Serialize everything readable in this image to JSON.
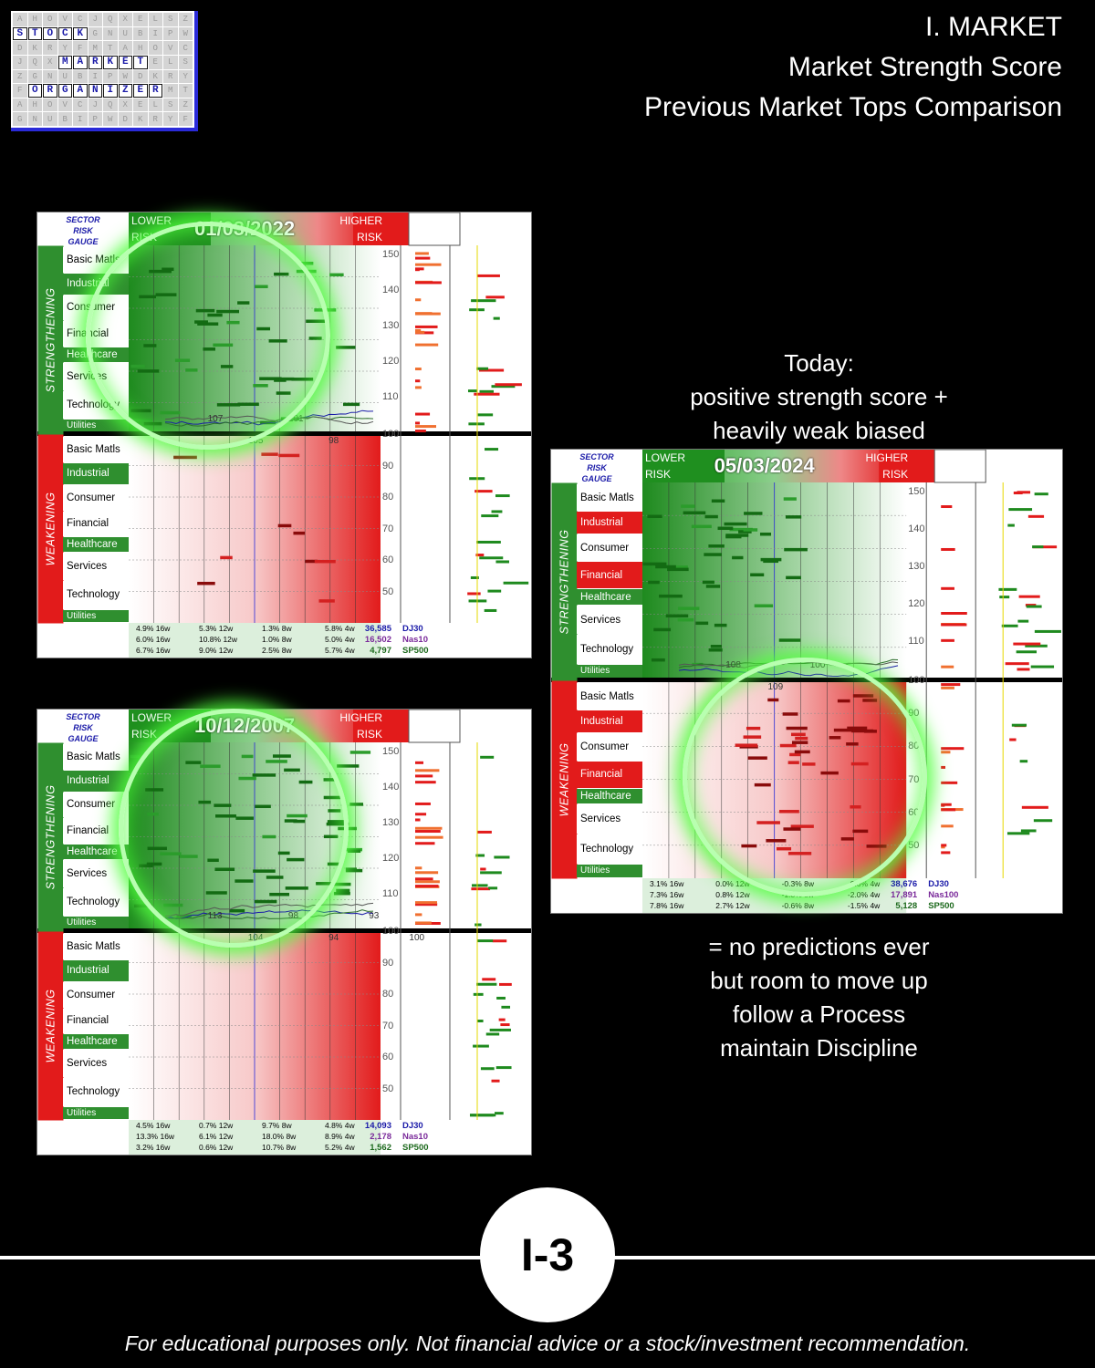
{
  "logo": {
    "rows": [
      [
        "",
        "",
        "",
        "",
        "",
        "",
        "",
        "",
        "",
        "",
        "",
        ""
      ],
      [
        "S",
        "T",
        "O",
        "C",
        "K",
        "",
        "",
        "",
        "",
        "",
        "",
        ""
      ],
      [
        "",
        "",
        "",
        "",
        "",
        "",
        "",
        "",
        "",
        "",
        "",
        ""
      ],
      [
        "",
        "",
        "",
        "M",
        "A",
        "R",
        "K",
        "E",
        "T",
        "",
        "",
        ""
      ],
      [
        "",
        "",
        "",
        "",
        "",
        "",
        "",
        "",
        "",
        "",
        "",
        ""
      ],
      [
        "",
        "O",
        "R",
        "G",
        "A",
        "N",
        "I",
        "Z",
        "E",
        "R",
        "",
        ""
      ],
      [
        "",
        "",
        "",
        "",
        "",
        "",
        "",
        "",
        "",
        "",
        "",
        ""
      ],
      [
        "",
        "",
        "",
        "",
        "",
        "",
        "",
        "",
        "",
        "",
        "",
        ""
      ]
    ]
  },
  "header": {
    "line1": "I. MARKET",
    "line2": "Market Strength Score",
    "line3": "Previous Market Tops Comparison"
  },
  "gauge_common": {
    "title": [
      "SECTOR",
      "RISK",
      "GAUGE"
    ],
    "lower": [
      "LOWER",
      "RISK"
    ],
    "higher": [
      "HIGHER",
      "RISK"
    ],
    "strengthening": "STRENGTHENING",
    "weakening": "WEAKENING"
  },
  "gauges": [
    {
      "date": "01/03/2022",
      "sectors_top": [
        "Basic Matls",
        "Industrial",
        "Consumer",
        "Financial",
        "Healthcare",
        "Services",
        "Technology",
        "Utilities"
      ],
      "sectors_bottom": [
        "Basic Matls",
        "Industrial",
        "Consumer",
        "Financial",
        "Healthcare",
        "Services",
        "Technology",
        "Utilities"
      ],
      "top_red": [],
      "bottom_red": [],
      "scale_top": [
        "150",
        "140",
        "130",
        "120",
        "110"
      ],
      "scale_bottom": [
        "100",
        "90",
        "80",
        "70",
        "60",
        "50"
      ],
      "chart_labels": [
        "107",
        "105",
        "101",
        "98"
      ],
      "footer": [
        {
          "c1": "4.9% 16w",
          "c2": "5.3% 12w",
          "c3": "1.3% 8w",
          "c4": "5.8% 4w",
          "val": "36,585",
          "idx": "DJ30"
        },
        {
          "c1": "6.0% 16w",
          "c2": "10.8% 12w",
          "c3": "1.0% 8w",
          "c4": "5.0% 4w",
          "val": "16,502",
          "idx": "Nas10"
        },
        {
          "c1": "6.7% 16w",
          "c2": "9.0% 12w",
          "c3": "2.5% 8w",
          "c4": "5.7% 4w",
          "val": "4,797",
          "idx": "SP500"
        }
      ]
    },
    {
      "date": "10/12/2007",
      "sectors_top": [
        "Basic Matls",
        "Industrial",
        "Consumer",
        "Financial",
        "Healthcare",
        "Services",
        "Technology",
        "Utilities"
      ],
      "sectors_bottom": [
        "Basic Matls",
        "Industrial",
        "Consumer",
        "Financial",
        "Healthcare",
        "Services",
        "Technology",
        "Utilities"
      ],
      "top_red": [],
      "bottom_red": [],
      "scale_top": [
        "150",
        "140",
        "130",
        "120",
        "110"
      ],
      "scale_bottom": [
        "100",
        "90",
        "80",
        "70",
        "60",
        "50"
      ],
      "chart_labels": [
        "113",
        "104",
        "98",
        "94",
        "93",
        "100"
      ],
      "footer": [
        {
          "c1": "4.5% 16w",
          "c2": "0.7% 12w",
          "c3": "9.7% 8w",
          "c4": "4.8% 4w",
          "val": "14,093",
          "idx": "DJ30"
        },
        {
          "c1": "13.3% 16w",
          "c2": "6.1% 12w",
          "c3": "18.0% 8w",
          "c4": "8.9% 4w",
          "val": "2,178",
          "idx": "Nas10"
        },
        {
          "c1": "3.2% 16w",
          "c2": "0.6% 12w",
          "c3": "10.7% 8w",
          "c4": "5.2% 4w",
          "val": "1,562",
          "idx": "SP500"
        }
      ]
    },
    {
      "date": "05/03/2024",
      "sectors_top": [
        "Basic Matls",
        "Industrial",
        "Consumer",
        "Financial",
        "Healthcare",
        "Services",
        "Technology",
        "Utilities"
      ],
      "sectors_bottom": [
        "Basic Matls",
        "Industrial",
        "Consumer",
        "Financial",
        "Healthcare",
        "Services",
        "Technology",
        "Utilities"
      ],
      "top_red": [
        "Industrial",
        "Financial"
      ],
      "bottom_red": [
        "Industrial",
        "Financial"
      ],
      "scale_top": [
        "150",
        "140",
        "130",
        "120",
        "110"
      ],
      "scale_bottom": [
        "100",
        "90",
        "80",
        "70",
        "60",
        "50"
      ],
      "chart_labels": [
        "108",
        "109",
        "100"
      ],
      "footer": [
        {
          "c1": "3.1% 16w",
          "c2": "0.0% 12w",
          "c3": "-0.3% 8w",
          "c4": "-0.6% 4w",
          "val": "38,676",
          "idx": "DJ30"
        },
        {
          "c1": "7.3% 16w",
          "c2": "0.8% 12w",
          "c3": "-1.3% 8w",
          "c4": "-2.0% 4w",
          "val": "17,891",
          "idx": "Nas100"
        },
        {
          "c1": "7.8% 16w",
          "c2": "2.7% 12w",
          "c3": "-0.6% 8w",
          "c4": "-1.5% 4w",
          "val": "5,128",
          "idx": "SP500"
        }
      ]
    }
  ],
  "today_text": {
    "line1": "Today:",
    "line2": "positive strength score +",
    "line3": "heavily weak biased"
  },
  "process_text": {
    "line1": "= no predictions ever",
    "line2": "but room to move up",
    "line3": "follow a Process",
    "line4": "maintain Discipline"
  },
  "badge": "I-3",
  "disclaimer": "For educational purposes only. Not financial advice or a stock/investment recommendation.",
  "colors": {
    "green": "#2f8f2f",
    "red": "#e21b1b",
    "glow": "#50ff3c",
    "logo_border": "#2a2ad8"
  }
}
